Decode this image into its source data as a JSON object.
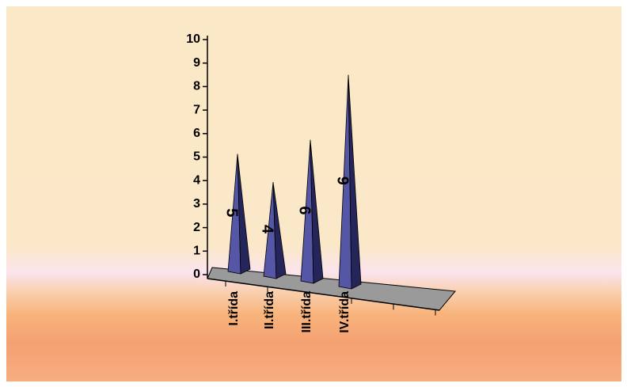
{
  "chart_data": {
    "type": "pyramid-bar",
    "categories": [
      "I.třída",
      "II.třída",
      "III.třída",
      "IV.třída"
    ],
    "values": [
      5,
      4,
      6,
      9
    ],
    "color": "#3c3c8c",
    "ylim": [
      0,
      10
    ],
    "yticks": [
      0,
      1,
      2,
      3,
      4,
      5,
      6,
      7,
      8,
      9,
      10
    ]
  }
}
